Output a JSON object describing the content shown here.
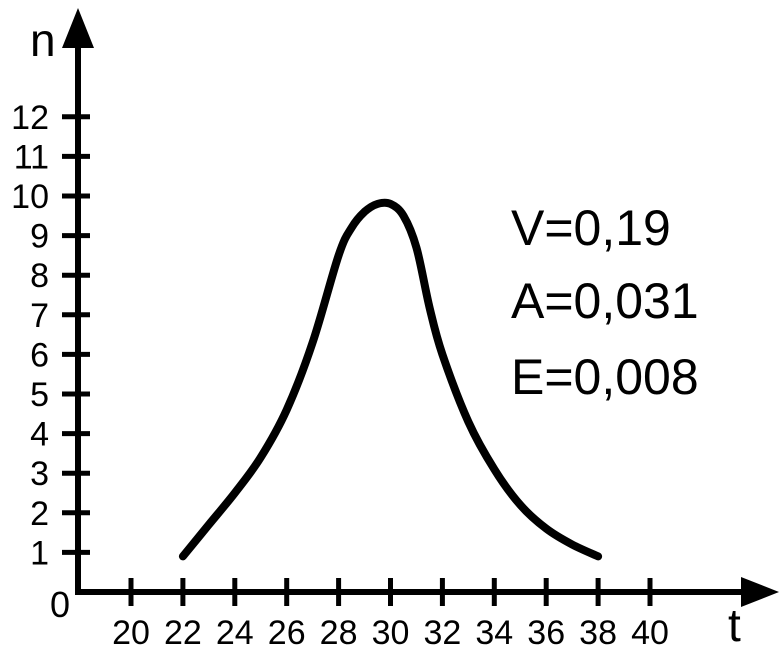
{
  "chart_data": {
    "type": "line",
    "xlabel": "t",
    "ylabel": "n",
    "origin_label": "0",
    "x_ticks": [
      20,
      22,
      24,
      26,
      28,
      30,
      32,
      34,
      36,
      38,
      40
    ],
    "y_ticks": [
      1,
      2,
      3,
      4,
      5,
      6,
      7,
      8,
      9,
      10,
      11,
      12
    ],
    "xlim": [
      18,
      42
    ],
    "ylim": [
      0,
      13
    ],
    "grid": false,
    "series": [
      {
        "x": [
          22,
          23,
          24,
          25,
          26,
          27,
          28,
          28.5,
          29,
          29.5,
          30,
          30.5,
          31,
          31.5,
          32,
          33,
          34,
          35,
          36,
          37,
          38
        ],
        "y": [
          0.9,
          1.7,
          2.5,
          3.4,
          4.6,
          6.3,
          8.5,
          9.2,
          9.6,
          9.8,
          9.8,
          9.5,
          8.7,
          7.2,
          6.0,
          4.3,
          3.1,
          2.2,
          1.6,
          1.2,
          0.9
        ]
      }
    ],
    "annotations": [
      "V=0,19",
      "A=0,031",
      "E=0,008"
    ],
    "colors": {
      "line": "#000000",
      "axes": "#000000",
      "background": "#ffffff"
    }
  }
}
